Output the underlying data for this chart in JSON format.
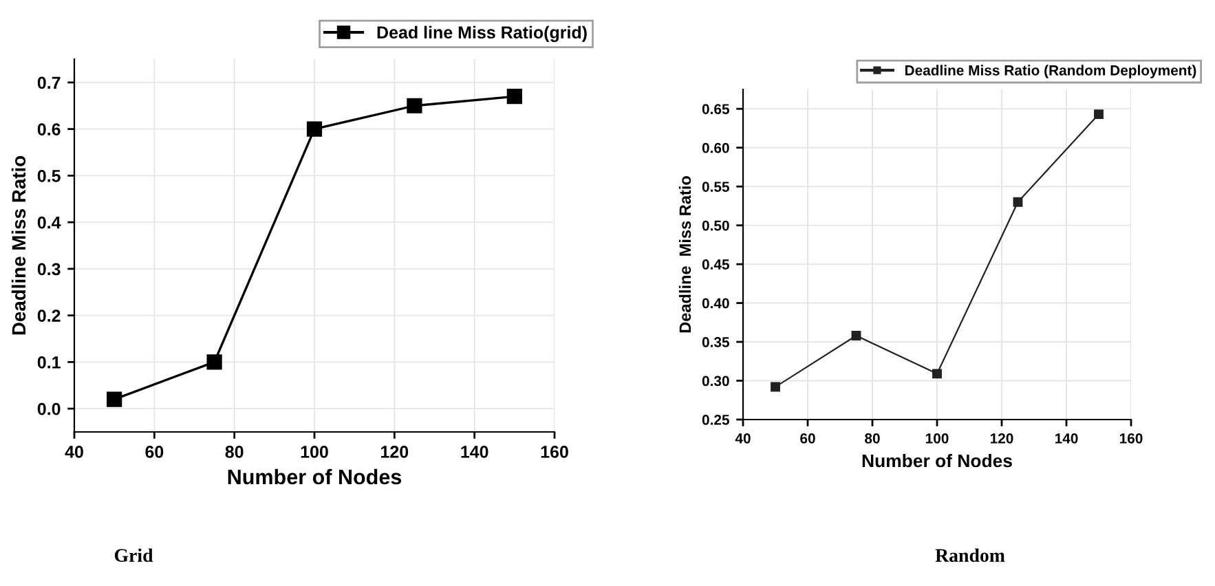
{
  "chart_data": [
    {
      "type": "line",
      "x": [
        50,
        75,
        100,
        125,
        150
      ],
      "series": [
        {
          "name": "Dead line Miss Ratio(grid)",
          "color": "#000000",
          "values": [
            0.02,
            0.1,
            0.6,
            0.65,
            0.67
          ]
        }
      ],
      "xlabel": "Number of Nodes",
      "ylabel": "Deadline Miss Ratio",
      "xlim": [
        40,
        160
      ],
      "xticks": [
        40,
        60,
        80,
        100,
        120,
        140,
        160
      ],
      "ylim": [
        -0.05,
        0.75
      ],
      "yticks": [
        {
          "value": 0,
          "label": "0.0"
        },
        0.1,
        0.2,
        0.3,
        0.4,
        0.5,
        0.6,
        0.7
      ],
      "grid": true,
      "legend": "top right",
      "marker": "square",
      "line_style": "solid",
      "annotations": [
        "Grid"
      ]
    },
    {
      "type": "line",
      "x": [
        50,
        75,
        100,
        125,
        150
      ],
      "series": [
        {
          "name": "Deadline Miss Ratio (Random Deployment)",
          "color": "#222222",
          "values": [
            0.292,
            0.358,
            0.309,
            0.53,
            0.643
          ]
        }
      ],
      "xlabel": "Number of Nodes",
      "ylabel": "Deadline  Miss Ratio",
      "xlim": [
        40,
        160
      ],
      "xticks": [
        40,
        60,
        80,
        100,
        120,
        140,
        160
      ],
      "ylim": [
        0.25,
        0.675
      ],
      "yticks": [
        {
          "value": 0.25,
          "label": "0.25"
        },
        {
          "value": 0.3,
          "label": "0.30"
        },
        {
          "value": 0.35,
          "label": "0.35"
        },
        {
          "value": 0.4,
          "label": "0.40"
        },
        {
          "value": 0.45,
          "label": "0.45"
        },
        {
          "value": 0.5,
          "label": "0.50"
        },
        {
          "value": 0.55,
          "label": "0.55"
        },
        {
          "value": 0.6,
          "label": "0.60"
        },
        {
          "value": 0.65,
          "label": "0.65"
        }
      ],
      "grid": true,
      "legend": "top right",
      "marker": "square",
      "line_style": "solid",
      "annotations": [
        "Random"
      ]
    }
  ]
}
